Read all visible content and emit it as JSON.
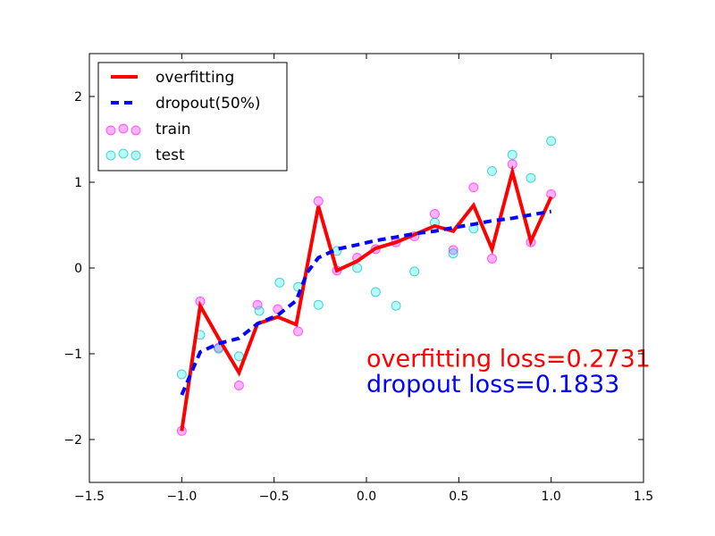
{
  "chart_data": {
    "type": "line",
    "title": "",
    "xlabel": "",
    "ylabel": "",
    "xlim": [
      -1.5,
      1.5
    ],
    "ylim": [
      -2.5,
      2.5
    ],
    "xticks": [
      -1.5,
      -1.0,
      -0.5,
      0.0,
      0.5,
      1.0,
      1.5
    ],
    "xtick_labels": [
      "−1.5",
      "−1.0",
      "−0.5",
      "0.0",
      "0.5",
      "1.0",
      "1.5"
    ],
    "yticks": [
      2,
      1,
      0,
      -1,
      -2
    ],
    "ytick_labels": [
      "2",
      "1",
      "0",
      "−1",
      "−2"
    ],
    "grid": false,
    "legend_position": "top-left",
    "series": [
      {
        "name": "overfitting",
        "kind": "line",
        "style": "solid",
        "color": "#ff0000",
        "x": [
          -1.0,
          -0.9,
          -0.8,
          -0.69,
          -0.59,
          -0.48,
          -0.38,
          -0.26,
          -0.16,
          -0.05,
          0.05,
          0.16,
          0.26,
          0.37,
          0.47,
          0.58,
          0.68,
          0.79,
          0.89,
          1.0
        ],
        "y": [
          -1.9,
          -0.44,
          -0.82,
          -1.22,
          -0.65,
          -0.57,
          -0.66,
          0.72,
          -0.03,
          0.08,
          0.23,
          0.3,
          0.39,
          0.49,
          0.43,
          0.73,
          0.22,
          1.12,
          0.31,
          0.83
        ]
      },
      {
        "name": "dropout(50%)",
        "kind": "line",
        "style": "dashed",
        "color": "#0000ff",
        "x": [
          -1.0,
          -0.9,
          -0.8,
          -0.69,
          -0.59,
          -0.48,
          -0.38,
          -0.32,
          -0.26,
          -0.16,
          -0.05,
          0.05,
          0.16,
          0.26,
          0.37,
          0.47,
          0.58,
          0.68,
          0.79,
          0.89,
          1.0
        ],
        "y": [
          -1.48,
          -0.98,
          -0.88,
          -0.82,
          -0.65,
          -0.55,
          -0.38,
          -0.05,
          0.12,
          0.22,
          0.27,
          0.32,
          0.36,
          0.4,
          0.43,
          0.47,
          0.51,
          0.55,
          0.58,
          0.62,
          0.66
        ]
      },
      {
        "name": "train",
        "kind": "scatter",
        "color": "#ff00ff",
        "x": [
          -1.0,
          -0.9,
          -0.8,
          -0.69,
          -0.59,
          -0.48,
          -0.37,
          -0.26,
          -0.16,
          -0.05,
          0.05,
          0.16,
          0.26,
          0.37,
          0.47,
          0.58,
          0.68,
          0.79,
          0.89,
          1.0
        ],
        "y": [
          -1.9,
          -0.39,
          -0.93,
          -1.37,
          -0.43,
          -0.48,
          -0.74,
          0.78,
          -0.03,
          0.12,
          0.22,
          0.3,
          0.37,
          0.63,
          0.21,
          0.94,
          0.11,
          1.21,
          0.3,
          0.86
        ]
      },
      {
        "name": "test",
        "kind": "scatter",
        "color": "#00ffff",
        "x": [
          -1.0,
          -0.9,
          -0.8,
          -0.69,
          -0.58,
          -0.47,
          -0.37,
          -0.26,
          -0.16,
          -0.05,
          0.05,
          0.16,
          0.26,
          0.37,
          0.47,
          0.58,
          0.68,
          0.79,
          0.89,
          1.0
        ],
        "y": [
          -1.24,
          -0.78,
          -0.94,
          -1.03,
          -0.5,
          -0.17,
          -0.22,
          -0.43,
          0.2,
          0.0,
          -0.28,
          -0.44,
          -0.04,
          0.53,
          0.17,
          0.46,
          1.13,
          1.32,
          1.05,
          1.48
        ]
      }
    ],
    "annotations": [
      {
        "text": "overfitting loss=0.2731",
        "x": 0.0,
        "y": -1.15,
        "color": "#ff0000"
      },
      {
        "text": "dropout loss=0.1833",
        "x": 0.0,
        "y": -1.45,
        "color": "#0000ff"
      }
    ]
  }
}
